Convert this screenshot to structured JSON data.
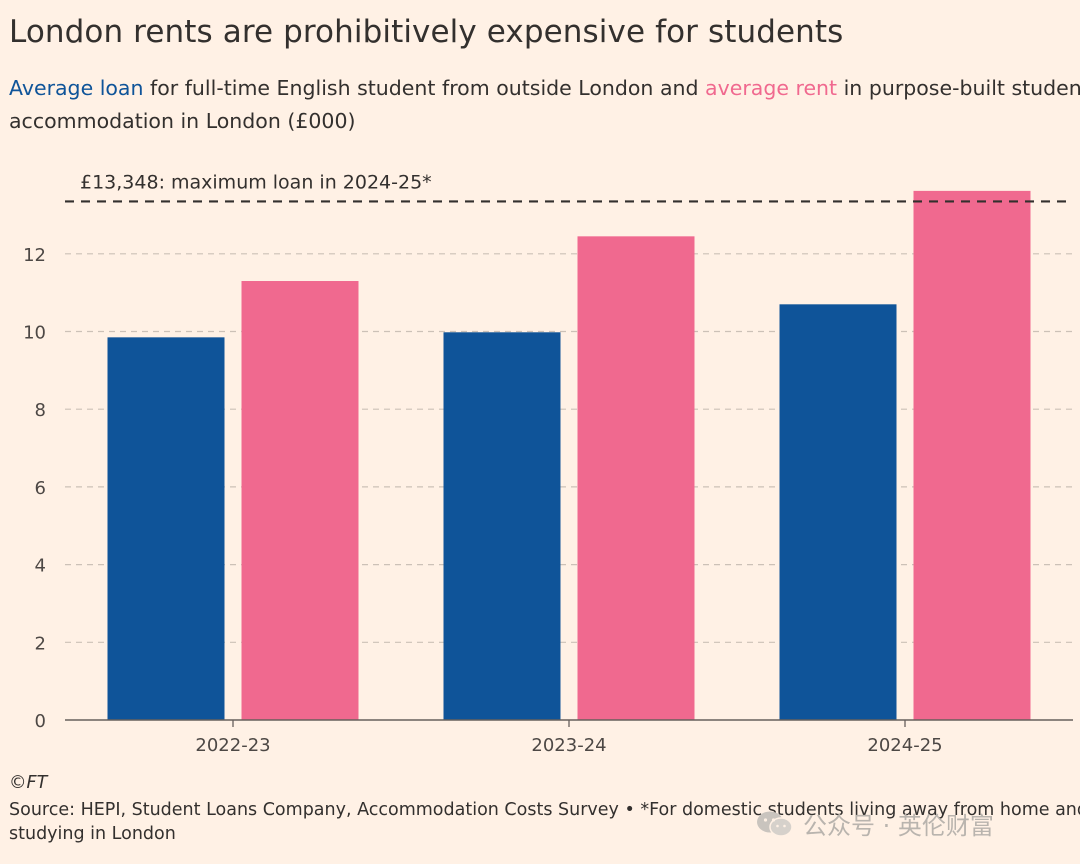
{
  "header": {
    "title": "London rents are prohibitively expensive for students",
    "subtitle_loan_key": "Average loan",
    "subtitle_mid": " for full-time English student from outside London and ",
    "subtitle_rent_key": "average rent",
    "subtitle_end": " in purpose-built student",
    "subtitle_line2": "accommodation in London (£000)"
  },
  "chart_data": {
    "type": "bar",
    "categories": [
      "2022-23",
      "2023-24",
      "2024-25"
    ],
    "series": [
      {
        "name": "Average loan",
        "color": "#0F5499",
        "values": [
          9.85,
          9.98,
          10.7
        ]
      },
      {
        "name": "average rent",
        "color": "#F0698F",
        "values": [
          11.3,
          12.45,
          13.62
        ]
      }
    ],
    "ylim": [
      0,
      13.9
    ],
    "yticks": [
      0,
      2,
      4,
      6,
      8,
      10,
      12
    ],
    "grid": true,
    "reference_line": {
      "value": 13.348,
      "label": "£13,348: maximum loan in 2024-25*"
    }
  },
  "footer": {
    "copyright": "©FT",
    "source_line1": "Source: HEPI, Student Loans Company, Accommodation Costs Survey • *For domestic students living away from home and",
    "source_line2": "studying in London"
  },
  "watermark": {
    "text": "公众号 · 英伦财富",
    "icon": "wechat-icon"
  }
}
